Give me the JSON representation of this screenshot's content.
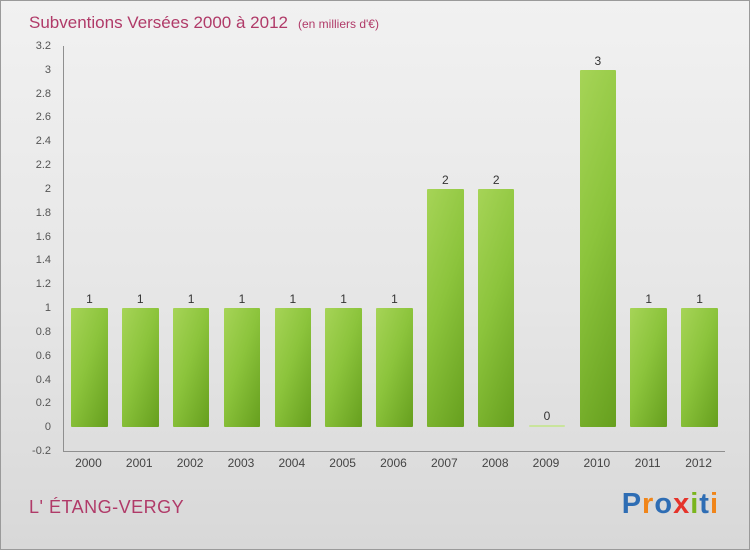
{
  "header": {
    "title": "Subventions Versées 2000 à 2012",
    "subtitle": "(en milliers d'€)"
  },
  "chart_data": {
    "type": "bar",
    "title": "Subventions Versées 2000 à 2012",
    "subtitle": "(en milliers d'€)",
    "categories": [
      "2000",
      "2001",
      "2002",
      "2003",
      "2004",
      "2005",
      "2006",
      "2007",
      "2008",
      "2009",
      "2010",
      "2011",
      "2012"
    ],
    "values": [
      1,
      1,
      1,
      1,
      1,
      1,
      1,
      2,
      2,
      0,
      3,
      1,
      1
    ],
    "xlabel": "",
    "ylabel": "",
    "ylim": [
      -0.2,
      3.2
    ],
    "ytick_step": 0.2,
    "grid": false,
    "value_labels": true,
    "bar_color_light": "#a6d457",
    "bar_color_dark": "#669f1e"
  },
  "footer": {
    "org_name": "L' ÉTANG-VERGY"
  },
  "logo": {
    "text": "Proxiti",
    "letters": [
      {
        "ch": "P",
        "color": "#2e6db4"
      },
      {
        "ch": "r",
        "color": "#f08519"
      },
      {
        "ch": "o",
        "color": "#2e6db4"
      },
      {
        "ch": "x",
        "color": "#e5332a"
      },
      {
        "ch": "i",
        "color": "#7ab51d"
      },
      {
        "ch": "t",
        "color": "#2e6db4"
      },
      {
        "ch": "i",
        "color": "#f08519"
      }
    ]
  },
  "colors": {
    "title_text": "#b03a68",
    "axis": "#8f8f8f",
    "background_top": "#f1f1f1",
    "background_bottom": "#d8d8d8"
  }
}
